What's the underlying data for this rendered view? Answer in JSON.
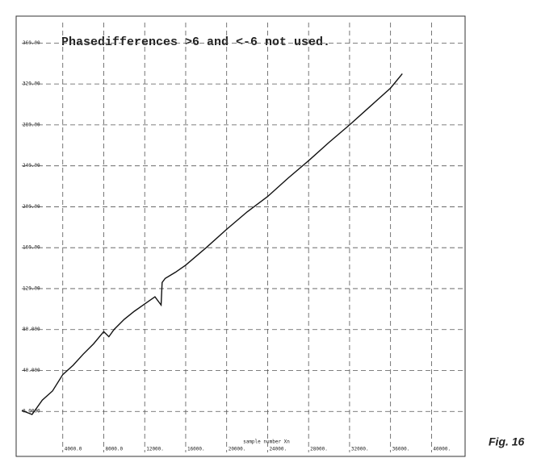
{
  "chart_data": {
    "type": "line",
    "title": "Phasedifferences >6 and <-6 not used.",
    "x_label": "sample number Xn",
    "caption": "Fig. 16",
    "x": [
      0,
      1000,
      2000,
      3000,
      4000,
      5000,
      6000,
      7000,
      8000,
      8500,
      9000,
      10000,
      11000,
      12000,
      13000,
      13600,
      13700,
      14000,
      15000,
      16000,
      18000,
      20000,
      22000,
      24000,
      26000,
      28000,
      30000,
      32000,
      34000,
      36000,
      37150
    ],
    "series": [
      {
        "color": "#111111",
        "values": [
          1,
          -3,
          11,
          20,
          36,
          45,
          56,
          66,
          78,
          73,
          80,
          90,
          98,
          105,
          112,
          104,
          126,
          130,
          136,
          143,
          160,
          178,
          195,
          210,
          228,
          245,
          263,
          280,
          298,
          316,
          330
        ]
      }
    ],
    "xlim": [
      0,
      43200
    ],
    "ylim": [
      -40,
      380
    ],
    "xticks": [
      {
        "value": 4000,
        "label": "4000.0"
      },
      {
        "value": 8000,
        "label": "8000.0"
      },
      {
        "value": 12000,
        "label": "12000."
      },
      {
        "value": 16000,
        "label": "16000."
      },
      {
        "value": 20000,
        "label": "20000."
      },
      {
        "value": 24000,
        "label": "24000."
      },
      {
        "value": 28000,
        "label": "28000."
      },
      {
        "value": 32000,
        "label": "32000."
      },
      {
        "value": 36000,
        "label": "36000."
      },
      {
        "value": 40000,
        "label": "40000."
      }
    ],
    "yticks": [
      {
        "value": 0,
        "label": "0.0000"
      },
      {
        "value": 40,
        "label": "40.000"
      },
      {
        "value": 80,
        "label": "80.000"
      },
      {
        "value": 120,
        "label": "120.00"
      },
      {
        "value": 160,
        "label": "160.00"
      },
      {
        "value": 200,
        "label": "200.00"
      },
      {
        "value": 240,
        "label": "240.00"
      },
      {
        "value": 280,
        "label": "280.00"
      },
      {
        "value": 320,
        "label": "320.00"
      },
      {
        "value": 360,
        "label": "360.00"
      }
    ],
    "grid": true
  }
}
